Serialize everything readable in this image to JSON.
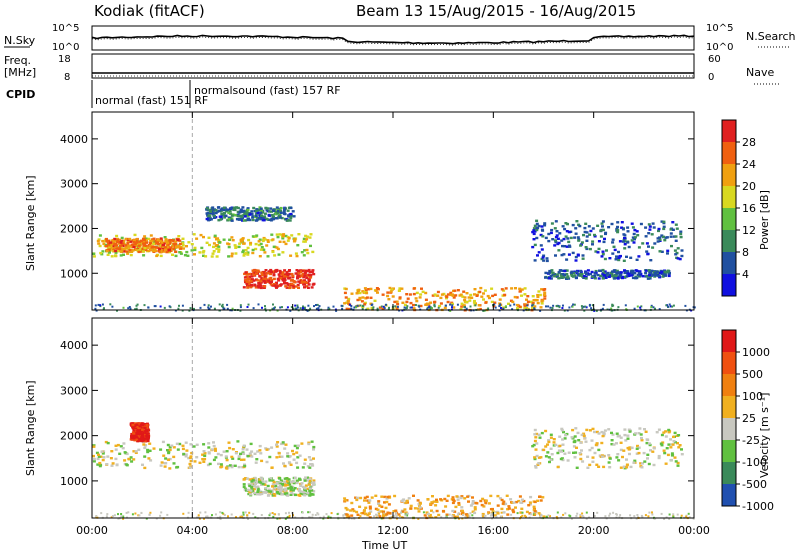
{
  "header": {
    "station": "Kodiak (fitACF)",
    "beam_date": "Beam 13 15/Aug/2015 - 16/Aug/2015"
  },
  "strip_labels": {
    "nsky": "N.Sky",
    "nsearch": "N.Search",
    "freq_line1": "Freq.",
    "freq_line2": "[MHz]",
    "nave": "Nave",
    "cpid": "CPID",
    "noise_left_top": "10^5",
    "noise_left_bottom": "10^0",
    "noise_right_top": "10^5",
    "noise_right_bottom": "10^0",
    "freq_left_top": "18",
    "freq_left_bottom": "8",
    "nave_right_top": "60",
    "nave_right_bottom": "0",
    "cpid_seg1": "normal (fast) 151 RF",
    "cpid_seg2": "normalsound (fast) 157 RF"
  },
  "axes": {
    "ylabel": "Slant Range [km]",
    "xlabel": "Time UT",
    "power_label": "Power [dB]",
    "velocity_label": "Velocity [m s⁻¹]"
  },
  "chart_data": [
    {
      "type": "heatmap",
      "name": "Power",
      "x_range_hours": [
        0,
        24
      ],
      "x_ticks": [
        "00:00",
        "04:00",
        "08:00",
        "12:00",
        "16:00",
        "20:00",
        "00:00"
      ],
      "ylim": [
        180,
        4600
      ],
      "y_ticks": [
        1000,
        2000,
        3000,
        4000
      ],
      "colorbar_ticks": [
        "28",
        "24",
        "20",
        "16",
        "12",
        "8",
        "4"
      ],
      "colorbar_range": [
        0,
        32
      ],
      "colors": [
        "#1010e0",
        "#2050a0",
        "#3a8a5a",
        "#60c040",
        "#d8d820",
        "#f0a010",
        "#f06010",
        "#e02020"
      ],
      "features": [
        {
          "t0": 0.0,
          "t1": 8.8,
          "r0": 1400,
          "r1": 1900,
          "level": 0.55
        },
        {
          "t0": 0.5,
          "t1": 3.5,
          "r0": 1500,
          "r1": 1800,
          "level": 0.75
        },
        {
          "t0": 6.0,
          "t1": 8.8,
          "r0": 700,
          "r1": 1100,
          "level": 0.9
        },
        {
          "t0": 4.5,
          "t1": 8.0,
          "r0": 2200,
          "r1": 2500,
          "level": 0.25
        },
        {
          "t0": 10.0,
          "t1": 18.0,
          "r0": 200,
          "r1": 700,
          "level": 0.7
        },
        {
          "t0": 17.5,
          "t1": 23.5,
          "r0": 1300,
          "r1": 2200,
          "level": 0.2
        },
        {
          "t0": 18.0,
          "t1": 23.0,
          "r0": 900,
          "r1": 1100,
          "level": 0.2
        }
      ]
    },
    {
      "type": "heatmap",
      "name": "Velocity",
      "x_range_hours": [
        0,
        24
      ],
      "x_ticks": [
        "00:00",
        "04:00",
        "08:00",
        "12:00",
        "16:00",
        "20:00",
        "00:00"
      ],
      "ylim": [
        180,
        4600
      ],
      "y_ticks": [
        1000,
        2000,
        3000,
        4000
      ],
      "colorbar_ticks": [
        "1000",
        "500",
        "100",
        "25",
        "-25",
        "-100",
        "-500",
        "-1000"
      ],
      "colors": [
        "#2050b0",
        "#3a8a5a",
        "#60c040",
        "#c8c8c0",
        "#f0b020",
        "#f08010",
        "#f05010",
        "#e01818"
      ],
      "features": [
        {
          "t0": 0.0,
          "t1": 8.8,
          "r0": 1300,
          "r1": 1900,
          "level": 0.45
        },
        {
          "t0": 6.0,
          "t1": 8.8,
          "r0": 700,
          "r1": 1100,
          "level": 0.4
        },
        {
          "t0": 1.5,
          "t1": 2.2,
          "r0": 1900,
          "r1": 2300,
          "level": 0.95
        },
        {
          "t0": 10.0,
          "t1": 18.0,
          "r0": 200,
          "r1": 700,
          "level": 0.6
        },
        {
          "t0": 17.5,
          "t1": 23.5,
          "r0": 1300,
          "r1": 2200,
          "level": 0.45
        }
      ]
    }
  ]
}
